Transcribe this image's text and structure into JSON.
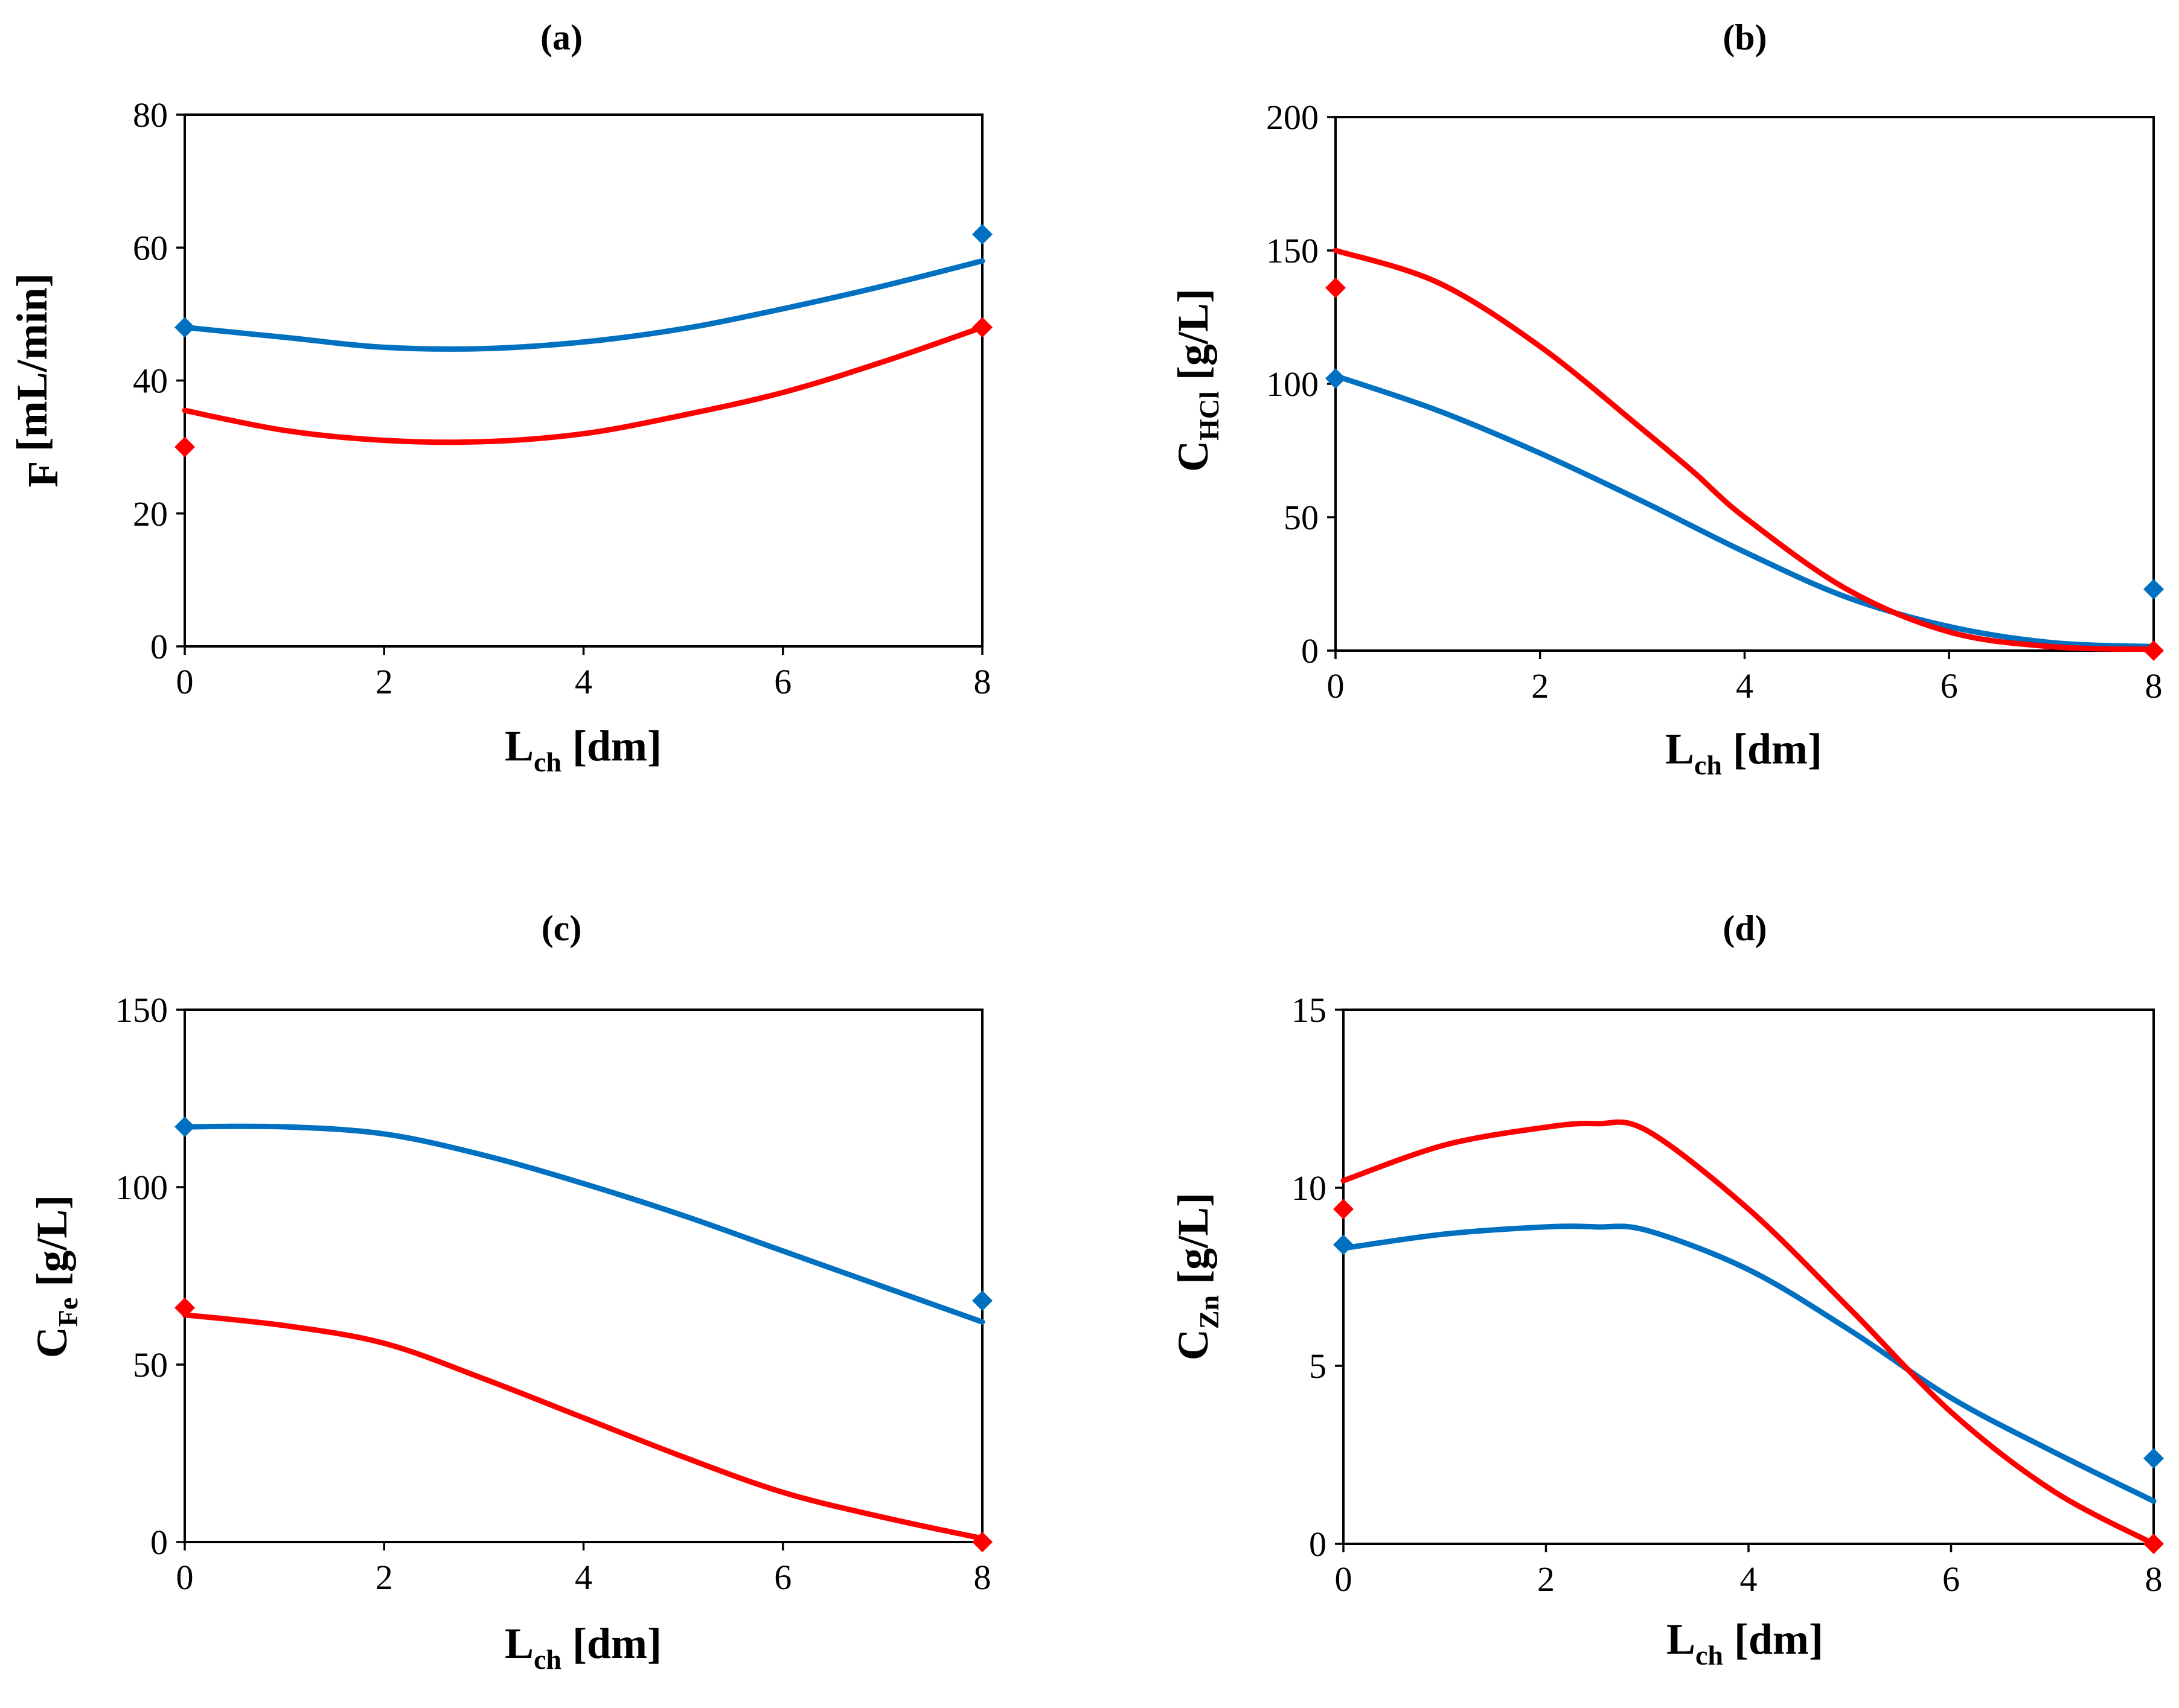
{
  "colors": {
    "model": "#0070C0",
    "experiment": "#FF0000"
  },
  "chart_data": [
    {
      "panel": "a",
      "type": "line",
      "title": "(a)",
      "xlabel": {
        "main": "L",
        "sub": "ch",
        "unit": " [dm]"
      },
      "ylabel": {
        "main": "F",
        "sub": "",
        "unit": " [mL/min]"
      },
      "xlim": [
        0,
        8
      ],
      "xticks": [
        0,
        2,
        4,
        6,
        8
      ],
      "ylim": [
        0,
        80
      ],
      "yticks": [
        0,
        20,
        40,
        60,
        80
      ],
      "series": [
        {
          "name": "blue curve",
          "color": "#0070C0",
          "kind": "line",
          "x": [
            0,
            1,
            2,
            3,
            4,
            5,
            6,
            7,
            8
          ],
          "y": [
            48,
            46.5,
            45,
            44.8,
            45.8,
            47.8,
            50.8,
            54.2,
            58
          ]
        },
        {
          "name": "red curve",
          "color": "#FF0000",
          "kind": "line",
          "x": [
            0,
            1,
            2,
            3,
            4,
            5,
            6,
            7,
            8
          ],
          "y": [
            35.5,
            32.5,
            31,
            30.8,
            32,
            34.8,
            38.2,
            42.8,
            48
          ]
        },
        {
          "name": "blue points",
          "color": "#0070C0",
          "kind": "marker",
          "x": [
            0,
            8
          ],
          "y": [
            48,
            62
          ]
        },
        {
          "name": "red points",
          "color": "#FF0000",
          "kind": "marker",
          "x": [
            0,
            8
          ],
          "y": [
            30,
            48
          ]
        }
      ]
    },
    {
      "panel": "b",
      "type": "line",
      "title": "(b)",
      "xlabel": {
        "main": "L",
        "sub": "ch",
        "unit": " [dm]"
      },
      "ylabel": {
        "main": "C",
        "sub": "HCl",
        "unit": " [g/L]"
      },
      "xlim": [
        0,
        8
      ],
      "xticks": [
        0,
        2,
        4,
        6,
        8
      ],
      "ylim": [
        0,
        200
      ],
      "yticks": [
        0,
        50,
        100,
        150,
        200
      ],
      "series": [
        {
          "name": "blue curve",
          "color": "#0070C0",
          "kind": "line",
          "x": [
            0,
            1,
            2,
            3,
            4,
            5,
            6,
            7,
            8
          ],
          "y": [
            103,
            90,
            74,
            56,
            37,
            20,
            9,
            3,
            1.5
          ]
        },
        {
          "name": "red curve",
          "color": "#FF0000",
          "kind": "line",
          "x": [
            0,
            1,
            2,
            3,
            3.5,
            4,
            5,
            6,
            7,
            8
          ],
          "y": [
            150,
            138,
            114,
            83,
            67,
            50,
            23,
            7,
            1.5,
            0.5
          ]
        },
        {
          "name": "blue points",
          "color": "#0070C0",
          "kind": "marker",
          "x": [
            0,
            8
          ],
          "y": [
            102,
            23
          ]
        },
        {
          "name": "red points",
          "color": "#FF0000",
          "kind": "marker",
          "x": [
            0,
            8
          ],
          "y": [
            136,
            0
          ]
        }
      ]
    },
    {
      "panel": "c",
      "type": "line",
      "title": "(c)",
      "xlabel": {
        "main": "L",
        "sub": "ch",
        "unit": " [dm]"
      },
      "ylabel": {
        "main": "C",
        "sub": "Fe",
        "unit": " [g/L]"
      },
      "xlim": [
        0,
        8
      ],
      "xticks": [
        0,
        2,
        4,
        6,
        8
      ],
      "ylim": [
        0,
        150
      ],
      "yticks": [
        0,
        50,
        100,
        150
      ],
      "series": [
        {
          "name": "blue curve",
          "color": "#0070C0",
          "kind": "line",
          "x": [
            0,
            1,
            2,
            3,
            4,
            5,
            6,
            7,
            8
          ],
          "y": [
            117,
            117,
            115,
            109,
            101,
            92,
            82,
            72,
            62
          ]
        },
        {
          "name": "red curve",
          "color": "#FF0000",
          "kind": "line",
          "x": [
            0,
            1,
            2,
            3,
            4,
            5,
            6,
            7,
            8
          ],
          "y": [
            64,
            61,
            56,
            46,
            35,
            24,
            14,
            7,
            1
          ]
        },
        {
          "name": "blue points",
          "color": "#0070C0",
          "kind": "marker",
          "x": [
            0,
            8
          ],
          "y": [
            117,
            68
          ]
        },
        {
          "name": "red points",
          "color": "#FF0000",
          "kind": "marker",
          "x": [
            0,
            8
          ],
          "y": [
            66,
            0
          ]
        }
      ]
    },
    {
      "panel": "d",
      "type": "line",
      "title": "(d)",
      "xlabel": {
        "main": "L",
        "sub": "ch",
        "unit": " [dm]"
      },
      "ylabel": {
        "main": "C",
        "sub": "Zn",
        "unit": " [g/L]"
      },
      "xlim": [
        0,
        8
      ],
      "xticks": [
        0,
        2,
        4,
        6,
        8
      ],
      "ylim": [
        0,
        15
      ],
      "yticks": [
        0,
        5,
        10,
        15
      ],
      "series": [
        {
          "name": "blue curve",
          "color": "#0070C0",
          "kind": "line",
          "x": [
            0,
            1,
            2,
            2.5,
            3,
            4,
            5,
            6,
            7,
            8
          ],
          "y": [
            8.3,
            8.7,
            8.9,
            8.9,
            8.8,
            7.7,
            6.0,
            4.1,
            2.6,
            1.2
          ]
        },
        {
          "name": "red curve",
          "color": "#FF0000",
          "kind": "line",
          "x": [
            0,
            1,
            2,
            2.5,
            3,
            4,
            5,
            6,
            7,
            8
          ],
          "y": [
            10.2,
            11.2,
            11.7,
            11.8,
            11.6,
            9.4,
            6.6,
            3.7,
            1.5,
            0
          ]
        },
        {
          "name": "blue points",
          "color": "#0070C0",
          "kind": "marker",
          "x": [
            0,
            8
          ],
          "y": [
            8.4,
            2.4
          ]
        },
        {
          "name": "red points",
          "color": "#FF0000",
          "kind": "marker",
          "x": [
            0,
            8
          ],
          "y": [
            9.4,
            0
          ]
        }
      ]
    }
  ]
}
